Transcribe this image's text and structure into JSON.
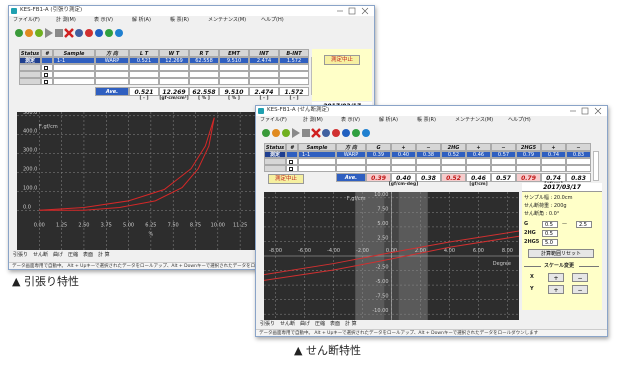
{
  "tensile": {
    "title": "KES-FB1-A (引張り測定)",
    "menu": [
      "ファイル(F)",
      "計 測(M)",
      "表 示(V)",
      "解 析(A)",
      "帳 票(R)",
      "メンテナンス(M)",
      "ヘルプ(H)"
    ],
    "header": [
      "Status",
      "#",
      "Sample",
      "方 向",
      "L T",
      "W T",
      "R T",
      "EMT",
      "INT",
      "B-INT"
    ],
    "row": {
      "status": "測定",
      "sample": "1-1",
      "direction": "WARP",
      "values": [
        "0.521",
        "12.269",
        "62.558",
        "9.510",
        "2.474",
        "1.572"
      ]
    },
    "button": "測定中止",
    "ave_label": "Ave.",
    "ave": [
      "0.521",
      "12.269",
      "62.558",
      "9.510",
      "2.474",
      "1.572"
    ],
    "units": [
      "[ - ]",
      "[gf·cm/cm²]",
      "[ % ]",
      "[ % ]",
      "[ - ]",
      "[ - ]"
    ],
    "date": "2017/03/17",
    "chart": {
      "type": "line",
      "xlim": [
        -1.25,
        18.75
      ],
      "ylim": [
        -210,
        520
      ],
      "xticks": [
        {
          "value": 0,
          "label": "0.00"
        },
        {
          "value": 1.25,
          "label": "1.25"
        },
        {
          "value": 2.5,
          "label": "2.50"
        },
        {
          "value": 3.75,
          "label": "3.75"
        },
        {
          "value": 5,
          "label": "5.00"
        },
        {
          "value": 6.25,
          "label": "6.25"
        },
        {
          "value": 7.5,
          "label": "7.50"
        },
        {
          "value": 8.75,
          "label": "8.75"
        },
        {
          "value": 10,
          "label": "10.00"
        },
        {
          "value": 11.25,
          "label": "11.25"
        }
      ],
      "yticks": [
        {
          "value": 0,
          "label": "0.0"
        },
        {
          "value": 100,
          "label": "100.0"
        },
        {
          "value": 200,
          "label": "200.0"
        },
        {
          "value": 300,
          "label": "300.0"
        },
        {
          "value": 400,
          "label": "400.0"
        },
        {
          "value": 500,
          "label": "500.0"
        }
      ],
      "ylabel": "F,gf/cm",
      "xlabel": "%",
      "grid": true,
      "label_position": "edge",
      "series": [
        {
          "color": "#d42828",
          "x": [
            0,
            2.5,
            5,
            7,
            8.5,
            9.3,
            9.8
          ],
          "values": [
            0,
            15,
            50,
            110,
            220,
            340,
            490
          ]
        },
        {
          "color": "#d42828",
          "x": [
            9.8,
            9.5,
            8.9,
            8,
            6.5,
            4.5,
            2.5,
            0
          ],
          "values": [
            490,
            340,
            220,
            120,
            50,
            15,
            0,
            0
          ]
        }
      ]
    },
    "tabs": [
      "引張り",
      "せん断",
      "曲げ",
      "圧縮",
      "表面",
      "計 算"
    ],
    "status_bar": "データ画面専用で自動中。 Alt + Upキーで選択されたデータをロールアップ、Alt + Downキーで選択されたデータをロールダウンします"
  },
  "shear": {
    "title": "KES-FB1-A (せん断測定)",
    "menu": [
      "ファイル(F)",
      "計 測(M)",
      "表 示(V)",
      "解 析(A)",
      "帳 票(R)",
      "メンテナンス(M)",
      "ヘルプ(H)"
    ],
    "header": [
      "Status",
      "#",
      "Sample",
      "方 向",
      "G",
      "+",
      "−",
      "2HG",
      "+",
      "−",
      "2HG5",
      "+",
      "−"
    ],
    "row": {
      "status": "測定",
      "sample": "1-1",
      "direction": "WARP",
      "values": [
        "0.39",
        "0.40",
        "0.38",
        "0.52",
        "0.46",
        "0.57",
        "0.79",
        "0.74",
        "0.83"
      ]
    },
    "button": "測定中止",
    "ave_label": "Ave.",
    "ave": [
      "0.39",
      "0.40",
      "0.38",
      "0.52",
      "0.46",
      "0.57",
      "0.79",
      "0.74",
      "0.83"
    ],
    "units": [
      "[gf/cm·deg]",
      "[gf/cm]",
      "[gf/cm]"
    ],
    "date": "2017/03/17",
    "panel": {
      "sample_width": "サンプル幅 : 20.0cm",
      "shear_load": "せん断荷重 : 200g",
      "shear_angle": "せん断角 : 0.0°",
      "ranges": [
        {
          "label": "G",
          "from": "0.5",
          "sep": "—",
          "to": "2.5"
        },
        {
          "label": "2HG",
          "from": "0.5"
        },
        {
          "label": "2HG5",
          "from": "5.0"
        }
      ],
      "reset": "計算範囲リセット",
      "scale_title": "スケール変更",
      "scale": [
        {
          "axis": "X",
          "plus": "+",
          "minus": "−"
        },
        {
          "axis": "Y",
          "plus": "+",
          "minus": "−"
        }
      ]
    },
    "chart": {
      "type": "line",
      "xlim": [
        -8.8,
        8.8
      ],
      "ylim": [
        -11,
        11
      ],
      "xticks": [
        {
          "value": -8,
          "label": "-8.00"
        },
        {
          "value": -6,
          "label": "-6.00"
        },
        {
          "value": -4,
          "label": "-4.00"
        },
        {
          "value": -2,
          "label": "-2.00"
        },
        {
          "value": 0,
          "label": "0.00"
        },
        {
          "value": 2,
          "label": "2.00"
        },
        {
          "value": 4,
          "label": "4.00"
        },
        {
          "value": 6,
          "label": "6.00"
        },
        {
          "value": 8,
          "label": "8.00"
        }
      ],
      "yticks": [
        {
          "value": 10,
          "label": "10.00"
        },
        {
          "value": 7.5,
          "label": "7.50"
        },
        {
          "value": 5,
          "label": "5.00"
        },
        {
          "value": 2.5,
          "label": "2.50"
        },
        {
          "value": -2.5,
          "label": "-2.50"
        },
        {
          "value": -5,
          "label": "-5.00"
        },
        {
          "value": -7.5,
          "label": "-7.50"
        },
        {
          "value": -10,
          "label": "-10.00"
        }
      ],
      "ylabel": "F,gf/cm",
      "xlabel": "Degree",
      "grid": true,
      "label_position": "center",
      "series": [
        {
          "color": "#d03030",
          "x": [
            -8.8,
            -4,
            0,
            4,
            8.8
          ],
          "values": [
            -3.2,
            -1.3,
            0.6,
            2.4,
            4.3
          ]
        },
        {
          "color": "#d03030",
          "x": [
            8.8,
            4,
            0,
            -4,
            -8.8
          ],
          "values": [
            3.4,
            1.5,
            -0.5,
            -2.4,
            -4.2
          ]
        }
      ]
    },
    "tabs": [
      "引張り",
      "せん断",
      "曲げ",
      "圧縮",
      "表面",
      "計 算"
    ],
    "status_bar": "データ画面専用で自動中。 Alt + Upキーで選択されたデータをロールアップ、Alt + Downキーで選択されたデータをロールダウンします"
  },
  "captions": [
    "▲ 引張り特性",
    "▲ せん断特性"
  ]
}
